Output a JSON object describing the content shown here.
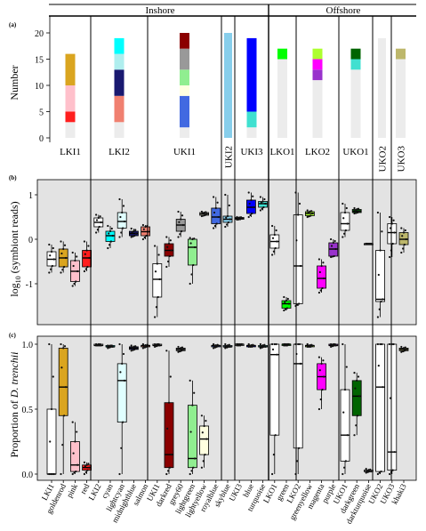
{
  "figure": {
    "group_labels": [
      "Inshore",
      "Offshore"
    ],
    "panel_labels": [
      "(a)",
      "(b)",
      "(c)"
    ]
  },
  "chart_data": [
    {
      "type": "bar",
      "panel": "(a)",
      "ylabel": "Number",
      "ylim": [
        0,
        21
      ],
      "yticks": [
        0,
        5,
        10,
        15,
        20
      ],
      "site_labels": [
        "LKI1",
        "LKI2",
        "UKI1",
        "UKI2",
        "UKI3",
        "LKO1",
        "LKO2",
        "UKO1",
        "UKO2",
        "UKO3"
      ],
      "stacks": [
        {
          "site": "LKI1",
          "segments": [
            {
              "color": "#ececec",
              "value": 3
            },
            {
              "color": "#ff1e1e",
              "value": 2
            },
            {
              "color": "#ffc0cb",
              "value": 5
            },
            {
              "color": "#daa520",
              "value": 6
            }
          ]
        },
        {
          "site": "LKI2",
          "segments": [
            {
              "color": "#ececec",
              "value": 3
            },
            {
              "color": "#f08070",
              "value": 5
            },
            {
              "color": "#191970",
              "value": 5
            },
            {
              "color": "#afeeee",
              "value": 3
            },
            {
              "color": "#00ffff",
              "value": 3
            }
          ]
        },
        {
          "site": "UKI1",
          "segments": [
            {
              "color": "#ececec",
              "value": 2
            },
            {
              "color": "#4169e1",
              "value": 6
            },
            {
              "color": "#ffffe0",
              "value": 2
            },
            {
              "color": "#90ee90",
              "value": 3
            },
            {
              "color": "#999999",
              "value": 4
            },
            {
              "color": "#8b0000",
              "value": 3
            }
          ]
        },
        {
          "site": "UKI2",
          "segments": [
            {
              "color": "#87ceeb",
              "value": 20
            }
          ]
        },
        {
          "site": "UKI3",
          "segments": [
            {
              "color": "#ececec",
              "value": 2
            },
            {
              "color": "#40e0d0",
              "value": 3
            },
            {
              "color": "#0000ff",
              "value": 14
            }
          ]
        },
        {
          "site": "LKO1",
          "segments": [
            {
              "color": "#ececec",
              "value": 15
            },
            {
              "color": "#00ff00",
              "value": 2
            }
          ]
        },
        {
          "site": "LKO2",
          "segments": [
            {
              "color": "#ececec",
              "value": 11
            },
            {
              "color": "#9932cc",
              "value": 2
            },
            {
              "color": "#ff00ff",
              "value": 2
            },
            {
              "color": "#adff2f",
              "value": 2
            }
          ]
        },
        {
          "site": "UKO1",
          "segments": [
            {
              "color": "#ececec",
              "value": 13
            },
            {
              "color": "#40e0d0",
              "value": 2
            },
            {
              "color": "#006400",
              "value": 2
            }
          ]
        },
        {
          "site": "UKO2",
          "segments": [
            {
              "color": "#ececec",
              "value": 19
            }
          ]
        },
        {
          "site": "UKO3",
          "segments": [
            {
              "color": "#ececec",
              "value": 15
            },
            {
              "color": "#bdb76b",
              "value": 2
            }
          ]
        }
      ]
    },
    {
      "type": "box",
      "panel": "(b)",
      "ylabel_prefix": "log",
      "ylabel_sub": "10",
      "ylabel_suffix": " (symbiont reads)",
      "ylim": [
        -1.85,
        1.3
      ],
      "yticks": [
        -1,
        0,
        1
      ],
      "boxes": [
        {
          "color": "#ffffff",
          "min": -0.75,
          "q1": -0.6,
          "median": -0.45,
          "q3": -0.28,
          "max": -0.12
        },
        {
          "color": "#daa520",
          "min": -0.75,
          "q1": -0.62,
          "median": -0.42,
          "q3": -0.22,
          "max": -0.05
        },
        {
          "color": "#ffc0cb",
          "min": -1.05,
          "q1": -0.95,
          "median": -0.72,
          "q3": -0.48,
          "max": -0.3
        },
        {
          "color": "#ff1e1e",
          "min": -0.72,
          "q1": -0.62,
          "median": -0.42,
          "q3": -0.25,
          "max": -0.05
        },
        {
          "color": "#ffffff",
          "min": 0.15,
          "q1": 0.28,
          "median": 0.38,
          "q3": 0.48,
          "max": 0.55
        },
        {
          "color": "#00ffff",
          "min": -0.2,
          "q1": -0.05,
          "median": 0.08,
          "q3": 0.18,
          "max": 0.3
        },
        {
          "color": "#e0ffff",
          "min": 0.05,
          "q1": 0.25,
          "median": 0.4,
          "q3": 0.6,
          "max": 0.9
        },
        {
          "color": "#191970",
          "min": 0.05,
          "q1": 0.08,
          "median": 0.13,
          "q3": 0.18,
          "max": 0.24
        },
        {
          "color": "#f08070",
          "min": 0.0,
          "q1": 0.08,
          "median": 0.17,
          "q3": 0.28,
          "max": 0.32
        },
        {
          "color": "#ffffff",
          "min": -1.75,
          "q1": -1.3,
          "median": -0.9,
          "q3": -0.55,
          "max": -0.15
        },
        {
          "color": "#8b0000",
          "min": -0.62,
          "q1": -0.38,
          "median": -0.25,
          "q3": -0.1,
          "max": 0.05
        },
        {
          "color": "#999999",
          "min": 0.05,
          "q1": 0.18,
          "median": 0.32,
          "q3": 0.45,
          "max": 0.62
        },
        {
          "color": "#90ee90",
          "min": -1.0,
          "q1": -0.58,
          "median": -0.18,
          "q3": 0.0,
          "max": 0.03
        },
        {
          "color": "#ffffe0",
          "min": 0.52,
          "q1": 0.54,
          "median": 0.57,
          "q3": 0.6,
          "max": 0.62
        },
        {
          "color": "#4169e1",
          "min": 0.25,
          "q1": 0.35,
          "median": 0.5,
          "q3": 0.7,
          "max": 0.95
        },
        {
          "color": "#87ceeb",
          "min": 0.28,
          "q1": 0.38,
          "median": 0.45,
          "q3": 0.52,
          "max": 1.0
        },
        {
          "color": "#ffffff",
          "min": 0.44,
          "q1": 0.45,
          "median": 0.47,
          "q3": 0.49,
          "max": 0.5
        },
        {
          "color": "#0000ff",
          "min": 0.5,
          "q1": 0.58,
          "median": 0.72,
          "q3": 0.88,
          "max": 1.05
        },
        {
          "color": "#40e0d0",
          "min": 0.65,
          "q1": 0.72,
          "median": 0.8,
          "q3": 0.85,
          "max": 0.95
        },
        {
          "color": "#ffffff",
          "min": -0.35,
          "q1": -0.2,
          "median": -0.05,
          "q3": 0.1,
          "max": 0.3
        },
        {
          "color": "#00ff00",
          "min": -1.6,
          "q1": -1.55,
          "median": -1.45,
          "q3": -1.38,
          "max": -1.3
        },
        {
          "color": "#ffffff",
          "min": -1.5,
          "q1": -1.45,
          "median": -0.6,
          "q3": 0.55,
          "max": 1.05
        },
        {
          "color": "#adff2f",
          "min": 0.5,
          "q1": 0.53,
          "median": 0.58,
          "q3": 0.62,
          "max": 0.65
        },
        {
          "color": "#ff00ff",
          "min": -1.2,
          "q1": -1.1,
          "median": -0.88,
          "q3": -0.6,
          "max": -0.45
        },
        {
          "color": "#9932cc",
          "min": -0.4,
          "q1": -0.38,
          "median": -0.22,
          "q3": -0.08,
          "max": 0.0
        },
        {
          "color": "#ffffff",
          "min": 0.05,
          "q1": 0.2,
          "median": 0.35,
          "q3": 0.6,
          "max": 0.8
        },
        {
          "color": "#006400",
          "min": 0.58,
          "q1": 0.6,
          "median": 0.63,
          "q3": 0.67,
          "max": 0.7
        },
        {
          "color": "#ffffff",
          "min": -0.1,
          "q1": -0.1,
          "median": -0.1,
          "q3": -0.1,
          "max": -0.1
        },
        {
          "color": "#ffffff",
          "min": -1.75,
          "q1": -1.4,
          "median": -1.35,
          "q3": -0.25,
          "max": 0.6
        },
        {
          "color": "#ffffff",
          "min": -0.4,
          "q1": -0.1,
          "median": 0.15,
          "q3": 0.35,
          "max": 0.5
        },
        {
          "color": "#bdb76b",
          "min": -0.3,
          "q1": -0.12,
          "median": 0.0,
          "q3": 0.15,
          "max": 0.25
        }
      ]
    },
    {
      "type": "box",
      "panel": "(c)",
      "ylabel_prefix": "Proportion of ",
      "ylabel_italic": "D. trenchii",
      "ylim": [
        -0.03,
        1.05
      ],
      "yticks": [
        0.0,
        0.5,
        1.0
      ],
      "tick_labels": [
        "LKI1",
        "goldenrod",
        "pink",
        "red",
        "LKI2",
        "cyan",
        "lightcyan",
        "midnightblue",
        "salmon",
        "UKI1",
        "darkred",
        "grey60",
        "lightgreen",
        "lightyellow",
        "royalblue",
        "skyblue",
        "UKI3",
        "blue",
        "turquoise",
        "LKO1",
        "green",
        "LKO2",
        "greenyellow",
        "magenta",
        "purple",
        "UKO1",
        "darkgreen",
        "darkturquoise",
        "UKO2",
        "UKO3",
        "khaki3"
      ],
      "boxes": [
        {
          "color": "#ffffff",
          "min": 0.0,
          "q1": 0.0,
          "median": 0.0,
          "q3": 0.5,
          "max": 1.0
        },
        {
          "color": "#daa520",
          "min": 0.0,
          "q1": 0.45,
          "median": 0.67,
          "q3": 0.97,
          "max": 1.0
        },
        {
          "color": "#ffc0cb",
          "min": 0.0,
          "q1": 0.02,
          "median": 0.07,
          "q3": 0.25,
          "max": 0.4
        },
        {
          "color": "#ff1e1e",
          "min": 0.0,
          "q1": 0.03,
          "median": 0.05,
          "q3": 0.07,
          "max": 0.09
        },
        {
          "color": "#ffffff",
          "min": 0.99,
          "q1": 0.99,
          "median": 0.99,
          "q3": 1.0,
          "max": 1.0
        },
        {
          "color": "#00ffff",
          "min": 0.97,
          "q1": 0.98,
          "median": 0.98,
          "q3": 0.99,
          "max": 0.99
        },
        {
          "color": "#e0ffff",
          "min": 0.0,
          "q1": 0.4,
          "median": 0.72,
          "q3": 0.85,
          "max": 1.0
        },
        {
          "color": "#191970",
          "min": 0.95,
          "q1": 0.96,
          "median": 0.97,
          "q3": 0.98,
          "max": 0.99
        },
        {
          "color": "#f08070",
          "min": 0.97,
          "q1": 0.98,
          "median": 0.99,
          "q3": 0.99,
          "max": 1.0
        },
        {
          "color": "#ffffff",
          "min": 0.98,
          "q1": 0.99,
          "median": 0.99,
          "q3": 1.0,
          "max": 1.0
        },
        {
          "color": "#8b0000",
          "min": 0.0,
          "q1": 0.05,
          "median": 0.15,
          "q3": 0.55,
          "max": 0.95
        },
        {
          "color": "#999999",
          "min": 0.94,
          "q1": 0.95,
          "median": 0.96,
          "q3": 0.97,
          "max": 0.98
        },
        {
          "color": "#90ee90",
          "min": 0.0,
          "q1": 0.05,
          "median": 0.12,
          "q3": 0.53,
          "max": 0.72
        },
        {
          "color": "#ffffe0",
          "min": 0.05,
          "q1": 0.15,
          "median": 0.27,
          "q3": 0.37,
          "max": 0.45
        },
        {
          "color": "#4169e1",
          "min": 0.97,
          "q1": 0.98,
          "median": 0.99,
          "q3": 0.99,
          "max": 1.0
        },
        {
          "color": "#87ceeb",
          "min": 0.97,
          "q1": 0.98,
          "median": 0.98,
          "q3": 0.99,
          "max": 1.0
        },
        {
          "color": "#ffffff",
          "min": 0.99,
          "q1": 0.99,
          "median": 1.0,
          "q3": 1.0,
          "max": 1.0
        },
        {
          "color": "#0000ff",
          "min": 0.98,
          "q1": 0.98,
          "median": 0.99,
          "q3": 0.99,
          "max": 1.0
        },
        {
          "color": "#40e0d0",
          "min": 0.97,
          "q1": 0.98,
          "median": 0.98,
          "q3": 0.99,
          "max": 1.0
        },
        {
          "color": "#ffffff",
          "min": 0.0,
          "q1": 0.3,
          "median": 0.92,
          "q3": 1.0,
          "max": 1.0
        },
        {
          "color": "#00ff00",
          "min": 0.99,
          "q1": 0.99,
          "median": 1.0,
          "q3": 1.0,
          "max": 1.0
        },
        {
          "color": "#ffffff",
          "min": 0.0,
          "q1": 0.2,
          "median": 0.85,
          "q3": 1.0,
          "max": 1.0
        },
        {
          "color": "#adff2f",
          "min": 0.98,
          "q1": 0.98,
          "median": 0.99,
          "q3": 0.99,
          "max": 1.0
        },
        {
          "color": "#ff00ff",
          "min": 0.5,
          "q1": 0.65,
          "median": 0.75,
          "q3": 0.85,
          "max": 0.9
        },
        {
          "color": "#9932cc",
          "min": 0.98,
          "q1": 0.99,
          "median": 0.99,
          "q3": 1.0,
          "max": 1.0
        },
        {
          "color": "#ffffff",
          "min": 0.0,
          "q1": 0.1,
          "median": 0.3,
          "q3": 0.65,
          "max": 1.0
        },
        {
          "color": "#006400",
          "min": 0.3,
          "q1": 0.45,
          "median": 0.6,
          "q3": 0.72,
          "max": 0.78
        },
        {
          "color": "#ffffff",
          "min": 0.01,
          "q1": 0.02,
          "median": 0.02,
          "q3": 0.03,
          "max": 0.04
        },
        {
          "color": "#ffffff",
          "min": 0.0,
          "q1": 0.02,
          "median": 0.67,
          "q3": 1.0,
          "max": 1.0
        },
        {
          "color": "#ffffff",
          "min": 0.0,
          "q1": 0.03,
          "median": 0.17,
          "q3": 1.0,
          "max": 1.0
        },
        {
          "color": "#bdb76b",
          "min": 0.94,
          "q1": 0.95,
          "median": 0.96,
          "q3": 0.97,
          "max": 0.98
        }
      ]
    }
  ]
}
